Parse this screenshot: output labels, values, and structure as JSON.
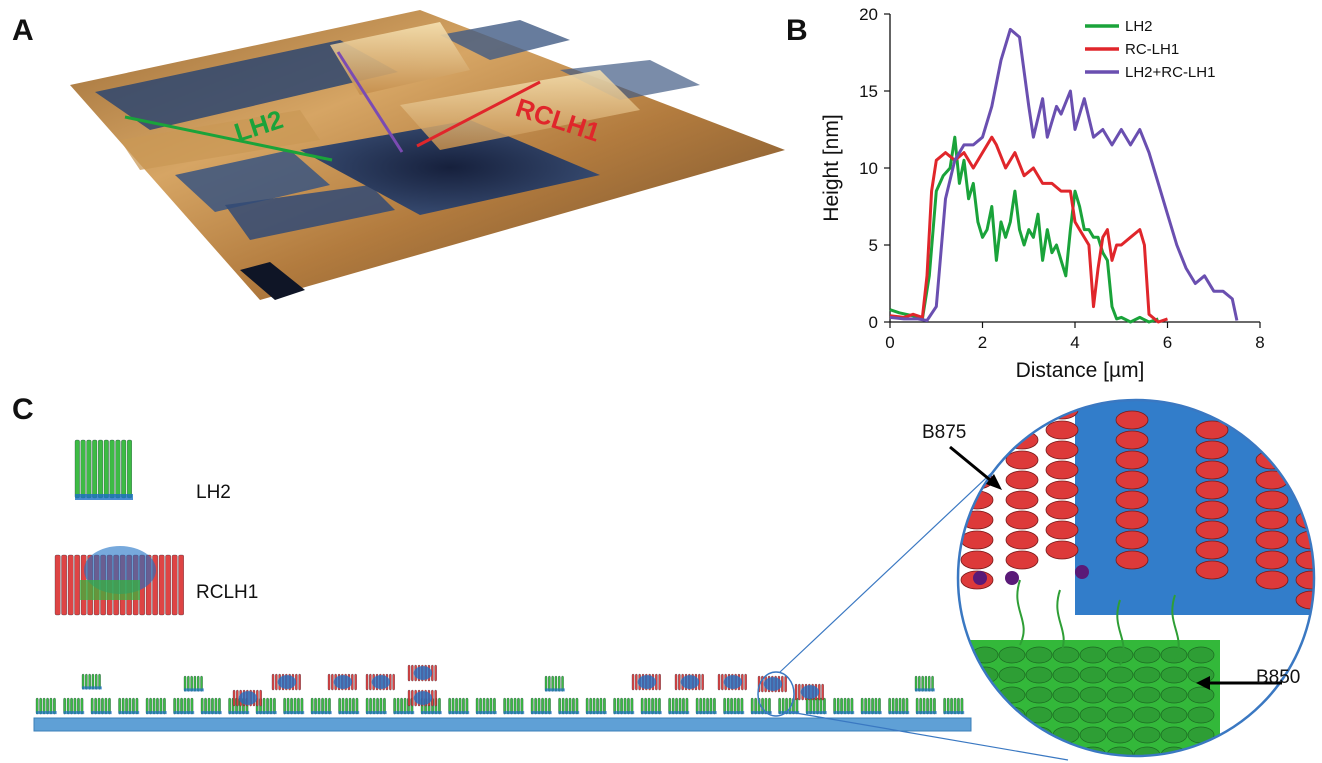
{
  "panels": {
    "a": "A",
    "b": "B",
    "c": "C"
  },
  "afm": {
    "label_lh2": "LH2",
    "label_rclh1": "RCLH1",
    "colors": {
      "surface_high": "#f3d9a4",
      "surface_mid": "#c08a45",
      "surface_low": "#2b3b63",
      "lh2_line": "#1aa33a",
      "rclh1_line": "#e0262b",
      "combined_line": "#7b4bb2"
    }
  },
  "chart_data": {
    "type": "line",
    "xlabel": "Distance [µm]",
    "ylabel": "Height [nm]",
    "xlim": [
      0,
      8
    ],
    "ylim": [
      0,
      20
    ],
    "xticks": [
      "0",
      "2",
      "4",
      "6",
      "8"
    ],
    "yticks": [
      "0",
      "5",
      "10",
      "15",
      "20"
    ],
    "legend_position": "top-right",
    "grid": false,
    "series": [
      {
        "name": "LH2",
        "color": "#1aa33a",
        "x": [
          0,
          0.2,
          0.5,
          0.7,
          0.85,
          1.0,
          1.15,
          1.3,
          1.4,
          1.5,
          1.6,
          1.7,
          1.8,
          1.9,
          2.0,
          2.1,
          2.2,
          2.3,
          2.4,
          2.5,
          2.6,
          2.7,
          2.8,
          2.9,
          3.0,
          3.1,
          3.2,
          3.3,
          3.4,
          3.5,
          3.6,
          3.7,
          3.8,
          3.9,
          4.0,
          4.1,
          4.2,
          4.3,
          4.4,
          4.5,
          4.6,
          4.7,
          4.8,
          4.9,
          5.0,
          5.2,
          5.4,
          5.6,
          5.8
        ],
        "y": [
          0.8,
          0.6,
          0.4,
          0.2,
          3.0,
          8.5,
          9.5,
          10.0,
          12.0,
          9.0,
          10.5,
          8.0,
          9.0,
          6.5,
          5.5,
          6.0,
          7.5,
          4.0,
          6.5,
          5.5,
          6.5,
          8.5,
          6.0,
          5.0,
          6.0,
          5.5,
          7.0,
          4.0,
          6.0,
          4.5,
          5.0,
          4.0,
          3.0,
          6.0,
          8.5,
          7.5,
          6.0,
          6.0,
          5.5,
          5.5,
          4.5,
          4.0,
          1.0,
          0.2,
          0.3,
          0.0,
          0.3,
          0.0,
          0.2
        ]
      },
      {
        "name": "RC-LH1",
        "color": "#e0262b",
        "x": [
          0,
          0.3,
          0.5,
          0.7,
          0.8,
          0.9,
          1.0,
          1.2,
          1.4,
          1.6,
          1.8,
          2.0,
          2.2,
          2.3,
          2.5,
          2.7,
          2.9,
          3.1,
          3.3,
          3.5,
          3.7,
          3.9,
          4.0,
          4.1,
          4.3,
          4.4,
          4.5,
          4.6,
          4.7,
          4.8,
          4.9,
          5.0,
          5.2,
          5.4,
          5.5,
          5.6,
          5.8,
          6.0
        ],
        "y": [
          0.4,
          0.3,
          0.5,
          0.3,
          3.0,
          8.5,
          10.5,
          11.0,
          10.5,
          11.0,
          10.0,
          11.0,
          12.0,
          11.5,
          10.0,
          11.0,
          9.5,
          10.0,
          9.0,
          9.0,
          8.5,
          8.5,
          6.5,
          6.0,
          5.0,
          1.0,
          3.5,
          5.5,
          6.0,
          4.0,
          5.0,
          5.0,
          5.5,
          6.0,
          5.0,
          0.5,
          0.0,
          0.2
        ]
      },
      {
        "name": "LH2+RC-LH1",
        "color": "#6a4fb0",
        "x": [
          0,
          0.3,
          0.6,
          0.8,
          1.0,
          1.2,
          1.4,
          1.6,
          1.8,
          2.0,
          2.2,
          2.4,
          2.6,
          2.8,
          3.0,
          3.1,
          3.3,
          3.4,
          3.6,
          3.7,
          3.9,
          4.0,
          4.2,
          4.4,
          4.6,
          4.8,
          5.0,
          5.2,
          5.4,
          5.6,
          5.8,
          6.0,
          6.2,
          6.4,
          6.6,
          6.8,
          7.0,
          7.2,
          7.4,
          7.5
        ],
        "y": [
          0.3,
          0.2,
          0.2,
          0.1,
          1.0,
          8.0,
          10.5,
          11.5,
          11.5,
          12.0,
          14.0,
          17.0,
          19.0,
          18.5,
          14.0,
          12.0,
          14.5,
          12.0,
          14.0,
          13.5,
          15.0,
          12.5,
          14.5,
          12.0,
          12.5,
          11.5,
          12.5,
          11.5,
          12.5,
          11.0,
          9.0,
          7.0,
          5.0,
          3.5,
          2.5,
          3.0,
          2.0,
          2.0,
          1.5,
          0.1
        ]
      }
    ]
  },
  "panel_c": {
    "label_lh2": "LH2",
    "label_rclh1": "RCLH1",
    "label_b875": "B875",
    "label_b850": "B850",
    "colors": {
      "lh2_protein": "#33b83a",
      "rclh1_helix": "#dd3a3a",
      "rc_blue": "#1c6fc4",
      "substrate": "#5fa0d6",
      "zoom_border": "#3a78c2"
    }
  }
}
